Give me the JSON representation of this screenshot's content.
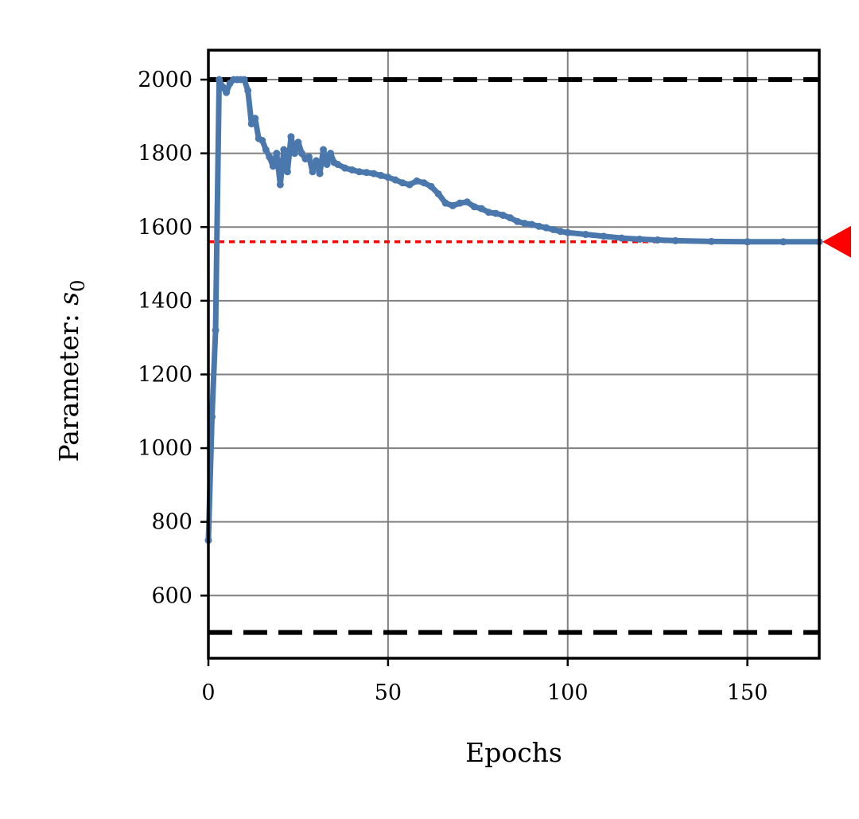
{
  "chart_data": {
    "type": "line",
    "xlabel": "Epochs",
    "ylabel": "Parameter: s0",
    "ylabel_prefix": "Parameter: ",
    "ylabel_symbol": "s",
    "ylabel_subscript": "0",
    "xlim": [
      0,
      170
    ],
    "ylim": [
      430,
      2080
    ],
    "xticks": [
      0,
      50,
      100,
      150
    ],
    "yticks": [
      600,
      800,
      1000,
      1200,
      1400,
      1600,
      1800,
      2000
    ],
    "xtick_labels": [
      "0",
      "50",
      "100",
      "150"
    ],
    "ytick_labels": [
      "600",
      "800",
      "1000",
      "1200",
      "1400",
      "1600",
      "1800",
      "2000"
    ],
    "grid": true,
    "bounds": [
      500,
      2000
    ],
    "target": 1560,
    "colors": {
      "series": "#4a78ad",
      "bounds": "#000000",
      "target": "#ff0000",
      "grid": "#808080"
    },
    "series": [
      {
        "x": [
          0,
          1,
          2,
          3,
          4,
          5,
          6,
          7,
          8,
          9,
          10,
          11,
          12,
          13,
          14,
          15,
          16,
          17,
          18,
          19,
          20,
          21,
          22,
          23,
          24,
          25,
          26,
          27,
          28,
          29,
          30,
          31,
          32,
          33,
          34,
          35,
          36,
          38,
          40,
          42,
          44,
          46,
          48,
          50,
          52,
          54,
          56,
          58,
          60,
          62,
          64,
          66,
          68,
          70,
          72,
          74,
          76,
          78,
          80,
          82,
          84,
          86,
          88,
          90,
          92,
          94,
          96,
          98,
          100,
          105,
          110,
          115,
          120,
          125,
          130,
          140,
          150,
          160,
          170
        ],
        "y": [
          750,
          1085,
          1320,
          2000,
          1980,
          1965,
          1990,
          2000,
          2000,
          2000,
          2000,
          1970,
          1880,
          1895,
          1840,
          1835,
          1810,
          1790,
          1765,
          1800,
          1715,
          1810,
          1750,
          1845,
          1800,
          1830,
          1800,
          1785,
          1790,
          1750,
          1780,
          1745,
          1810,
          1770,
          1800,
          1775,
          1770,
          1760,
          1755,
          1750,
          1748,
          1745,
          1740,
          1735,
          1728,
          1720,
          1715,
          1725,
          1720,
          1710,
          1690,
          1665,
          1658,
          1665,
          1668,
          1655,
          1650,
          1640,
          1637,
          1632,
          1625,
          1615,
          1610,
          1607,
          1602,
          1598,
          1593,
          1588,
          1585,
          1580,
          1575,
          1570,
          1567,
          1565,
          1563,
          1561,
          1560,
          1560,
          1560
        ]
      }
    ]
  }
}
